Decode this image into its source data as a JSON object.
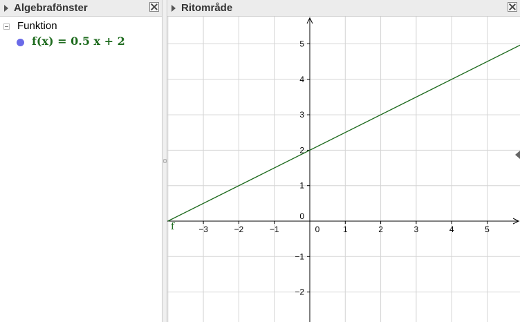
{
  "algebra_view": {
    "title": "Algebrafönster",
    "category": "Funktion",
    "objects": [
      {
        "formula": "f(x)  =  0.5 x + 2",
        "color": "#6a6ae8"
      }
    ]
  },
  "graphics_view": {
    "title": "Ritområde",
    "function": {
      "label": "f",
      "slope": 0.5,
      "intercept": 2,
      "color": "#1e6b1e"
    },
    "x_ticks": [
      "−3",
      "−2",
      "−1",
      "0",
      "1",
      "2",
      "3",
      "4",
      "5"
    ],
    "y_ticks": [
      "−2",
      "−1",
      "1",
      "2",
      "3",
      "4",
      "5"
    ],
    "origin_label": "0"
  },
  "chart_data": {
    "type": "line",
    "series": [
      {
        "name": "f",
        "expression": "0.5x + 2"
      }
    ],
    "xlim": [
      -4,
      5.85
    ],
    "ylim": [
      -2.8,
      5.8
    ],
    "grid": true
  }
}
